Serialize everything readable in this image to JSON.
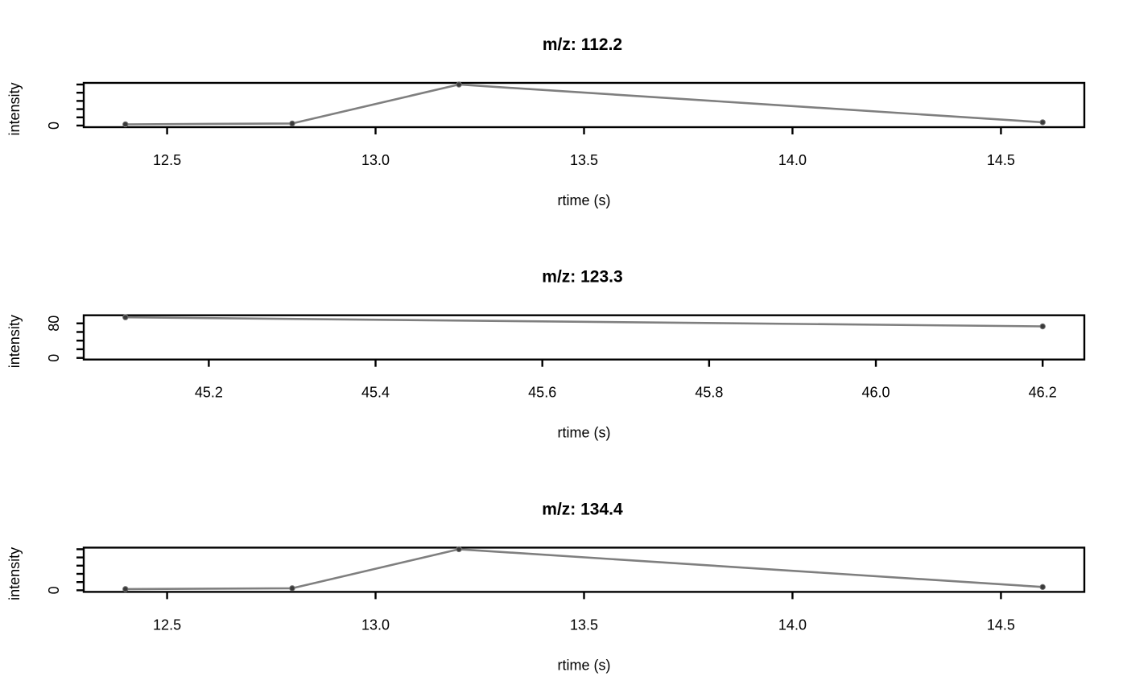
{
  "colors": {
    "line": "#7f7f7f",
    "point": "#3a3a3a",
    "frame": "#000000",
    "background": "#ffffff"
  },
  "chart_data": [
    {
      "type": "line",
      "title": "m/z: 112.2",
      "xlabel": "rtime (s)",
      "ylabel": "intensity",
      "x": [
        12.4,
        12.8,
        13.2,
        14.6
      ],
      "y": [
        3,
        5,
        100,
        8
      ],
      "xlim": [
        12.3,
        14.7
      ],
      "ylim": [
        0,
        100
      ],
      "x_ticks": [
        12.5,
        13.0,
        13.5,
        14.0,
        14.5
      ],
      "x_tick_labels": [
        "12.5",
        "13.0",
        "13.5",
        "14.0",
        "14.5"
      ],
      "y_ticks": [
        0,
        20,
        40,
        60,
        80,
        100
      ],
      "y_tick_labels": [
        "0",
        "",
        "",
        "",
        "",
        ""
      ],
      "grid": false
    },
    {
      "type": "line",
      "title": "m/z: 123.3",
      "xlabel": "rtime (s)",
      "ylabel": "intensity",
      "x": [
        45.1,
        46.2
      ],
      "y": [
        94,
        73
      ],
      "xlim": [
        45.05,
        46.25
      ],
      "ylim": [
        0,
        95
      ],
      "x_ticks": [
        45.2,
        45.4,
        45.6,
        45.8,
        46.0,
        46.2
      ],
      "x_tick_labels": [
        "45.2",
        "45.4",
        "45.6",
        "45.8",
        "46.0",
        "46.2"
      ],
      "y_ticks": [
        0,
        20,
        40,
        60,
        80
      ],
      "y_tick_labels": [
        "0",
        "",
        "",
        "",
        "80"
      ],
      "grid": false
    },
    {
      "type": "line",
      "title": "m/z: 134.4",
      "xlabel": "rtime (s)",
      "ylabel": "intensity",
      "x": [
        12.4,
        12.8,
        13.2,
        14.6
      ],
      "y": [
        3,
        5,
        100,
        8
      ],
      "xlim": [
        12.3,
        14.7
      ],
      "ylim": [
        0,
        100
      ],
      "x_ticks": [
        12.5,
        13.0,
        13.5,
        14.0,
        14.5
      ],
      "x_tick_labels": [
        "12.5",
        "13.0",
        "13.5",
        "14.0",
        "14.5"
      ],
      "y_ticks": [
        0,
        20,
        40,
        60,
        80,
        100
      ],
      "y_tick_labels": [
        "0",
        "",
        "",
        "",
        "",
        ""
      ],
      "grid": false
    }
  ]
}
